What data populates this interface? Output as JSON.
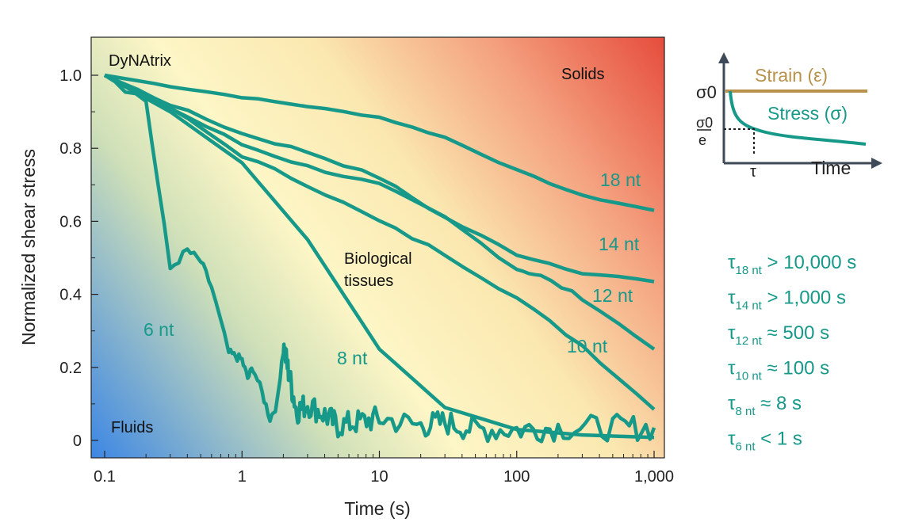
{
  "colors": {
    "teal": "#17998a",
    "strain": "#b8914a",
    "axis": "#3f4a58",
    "fluid_blue": "#3c86e4",
    "cream": "#fdf6c6",
    "solid_red": "#e64c3c"
  },
  "chart_data": {
    "type": "line",
    "title": "",
    "xlabel": "Time (s)",
    "ylabel": "Normalized shear stress",
    "xscale": "log",
    "xlim": [
      0.08,
      1200
    ],
    "ylim": [
      -0.03,
      1.1
    ],
    "x_ticks": [
      {
        "value": 0.1,
        "label": "0.1"
      },
      {
        "value": 1,
        "label": "1"
      },
      {
        "value": 10,
        "label": "10"
      },
      {
        "value": 100,
        "label": "100"
      },
      {
        "value": 1000,
        "label": "1,000"
      }
    ],
    "y_ticks": [
      {
        "value": 0,
        "label": "0"
      },
      {
        "value": 0.2,
        "label": "0.2"
      },
      {
        "value": 0.4,
        "label": "0.4"
      },
      {
        "value": 0.6,
        "label": "0.6"
      },
      {
        "value": 0.8,
        "label": "0.8"
      },
      {
        "value": 1.0,
        "label": "1.0"
      }
    ],
    "region_labels": {
      "solids": "Solids",
      "fluids": "Fluids",
      "dynatrix": "DyNAtrix",
      "bio_line1": "Biological",
      "bio_line2": "tissues"
    },
    "series": [
      {
        "name": "18 nt",
        "x": [
          0.1,
          0.3,
          1,
          3,
          10,
          30,
          100,
          300,
          1000
        ],
        "y": [
          1.0,
          0.97,
          0.94,
          0.915,
          0.885,
          0.83,
          0.74,
          0.67,
          0.63
        ]
      },
      {
        "name": "14 nt",
        "x": [
          0.1,
          0.3,
          1,
          3,
          10,
          30,
          100,
          300,
          1000
        ],
        "y": [
          1.0,
          0.92,
          0.84,
          0.79,
          0.72,
          0.61,
          0.51,
          0.46,
          0.435
        ]
      },
      {
        "name": "12 nt",
        "x": [
          0.1,
          0.3,
          1,
          3,
          10,
          30,
          100,
          150,
          300,
          1000
        ],
        "y": [
          1.0,
          0.91,
          0.81,
          0.75,
          0.7,
          0.61,
          0.47,
          0.45,
          0.39,
          0.25
        ]
      },
      {
        "name": "10 nt",
        "x": [
          0.1,
          0.3,
          1,
          3,
          10,
          30,
          100,
          300,
          1000
        ],
        "y": [
          1.0,
          0.91,
          0.78,
          0.7,
          0.6,
          0.51,
          0.39,
          0.26,
          0.085
        ]
      },
      {
        "name": "8 nt",
        "x": [
          0.1,
          0.3,
          1,
          3,
          10,
          30,
          100,
          300,
          1000
        ],
        "y": [
          1.0,
          0.9,
          0.76,
          0.55,
          0.25,
          0.09,
          0.03,
          0.015,
          0.008
        ]
      },
      {
        "name": "6 nt",
        "x": [
          0.1,
          0.2,
          0.3,
          0.4,
          0.5,
          0.6,
          0.8,
          0.9,
          1,
          1.1,
          1.2,
          1.4,
          1.6,
          1.8,
          2,
          2.2,
          2.5,
          3,
          4,
          5,
          7,
          10,
          20,
          30,
          50,
          100,
          200,
          500,
          1000
        ],
        "y": [
          1.0,
          0.93,
          0.47,
          0.52,
          0.49,
          0.42,
          0.24,
          0.23,
          0.22,
          0.17,
          0.2,
          0.13,
          0.06,
          0.1,
          0.26,
          0.18,
          0.08,
          0.1,
          0.07,
          0.04,
          0.05,
          0.06,
          0.04,
          0.05,
          0.03,
          0.03,
          0.035,
          0.035,
          0.035
        ]
      }
    ]
  },
  "inset": {
    "sigma0": "σ0",
    "sigma_e_num": "σ0",
    "sigma_e_den": "e",
    "tau": "τ",
    "strain_label": "Strain (ε)",
    "stress_label": "Stress (σ)",
    "time_label": "Time"
  },
  "tau_list": [
    {
      "sub": "18 nt",
      "rest": " > 10,000 s"
    },
    {
      "sub": "14 nt",
      "rest": " > 1,000 s"
    },
    {
      "sub": "12 nt",
      "rest": " ≈ 500 s"
    },
    {
      "sub": "10 nt",
      "rest": " ≈ 100 s"
    },
    {
      "sub": "8 nt",
      "rest": " ≈ 8 s"
    },
    {
      "sub": "6 nt",
      "rest": " < 1 s"
    }
  ]
}
